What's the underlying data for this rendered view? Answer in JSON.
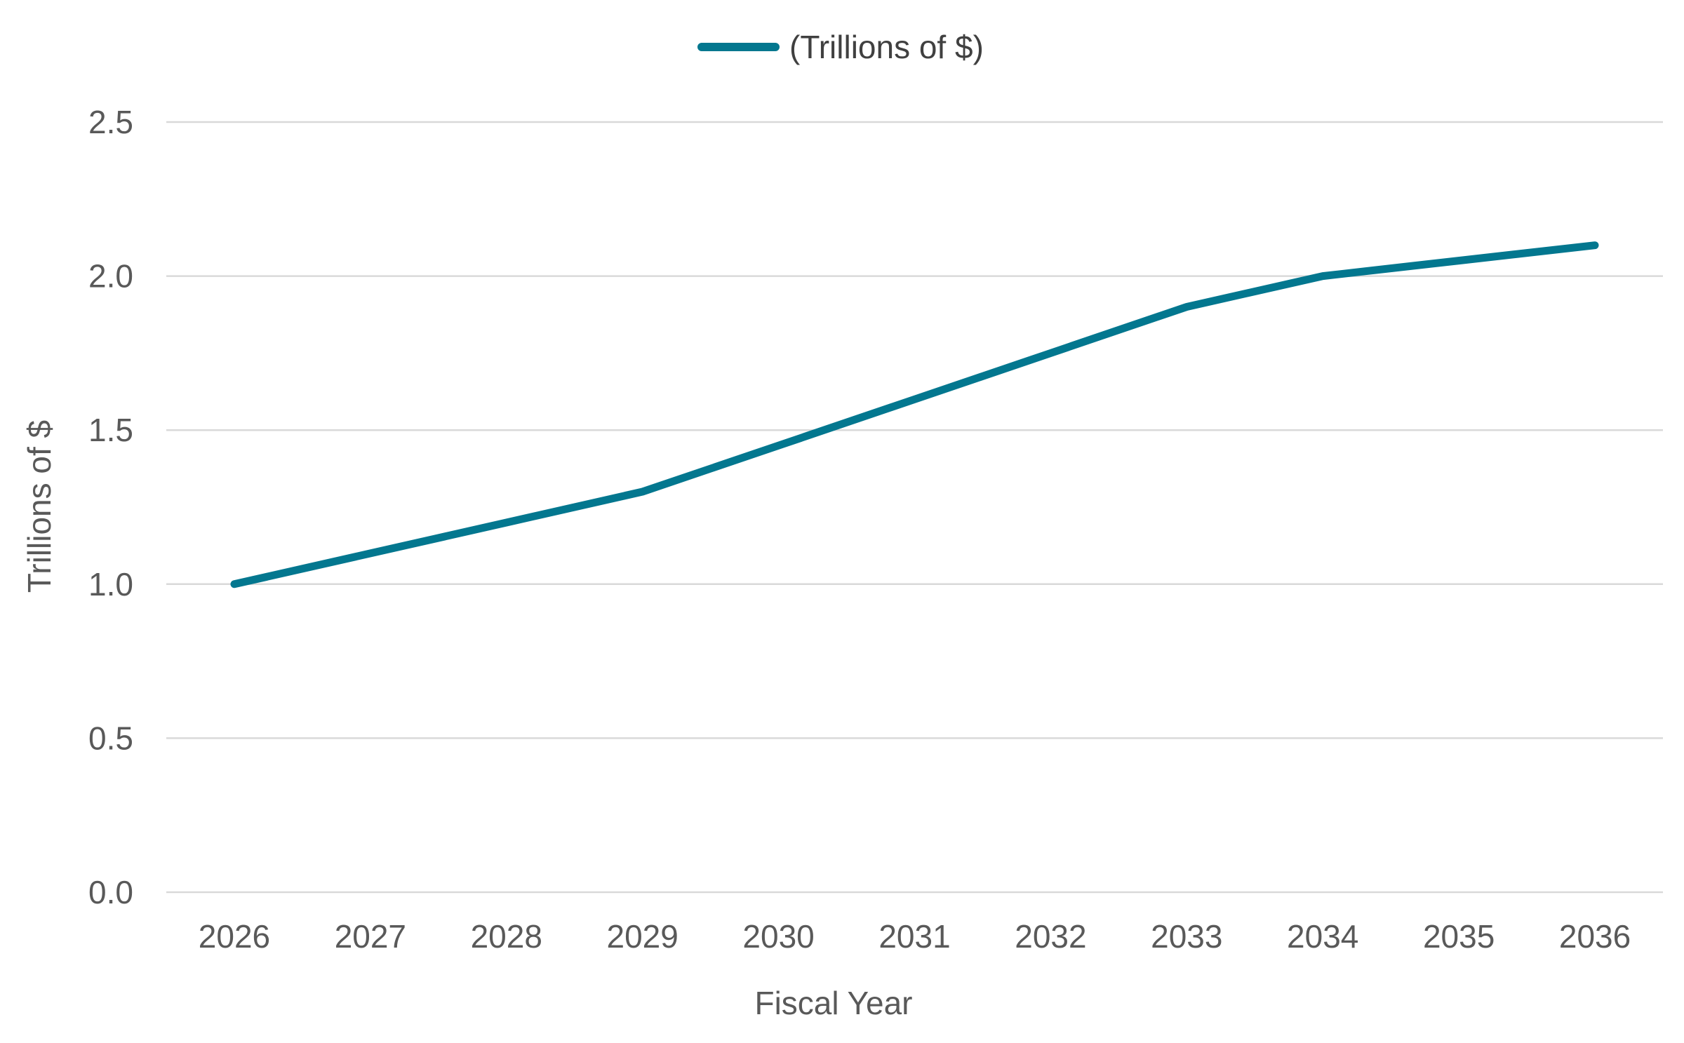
{
  "chart_data": {
    "type": "line",
    "title": "",
    "xlabel": "Fiscal Year",
    "ylabel": "Trillions of $",
    "categories": [
      "2026",
      "2027",
      "2028",
      "2029",
      "2030",
      "2031",
      "2032",
      "2033",
      "2034",
      "2035",
      "2036"
    ],
    "series": [
      {
        "name": "(Trillions of $)",
        "color": "#03778f",
        "values": [
          1.0,
          1.1,
          1.2,
          1.3,
          1.45,
          1.6,
          1.75,
          1.9,
          2.0,
          2.05,
          2.1
        ]
      }
    ],
    "ylim": [
      0,
      2.5
    ],
    "yticks": [
      0.0,
      0.5,
      1.0,
      1.5,
      2.0,
      2.5
    ],
    "ytick_labels": [
      "0.0",
      "0.5",
      "1.0",
      "1.5",
      "2.0",
      "2.5"
    ],
    "grid": true,
    "legend": "top-center"
  }
}
